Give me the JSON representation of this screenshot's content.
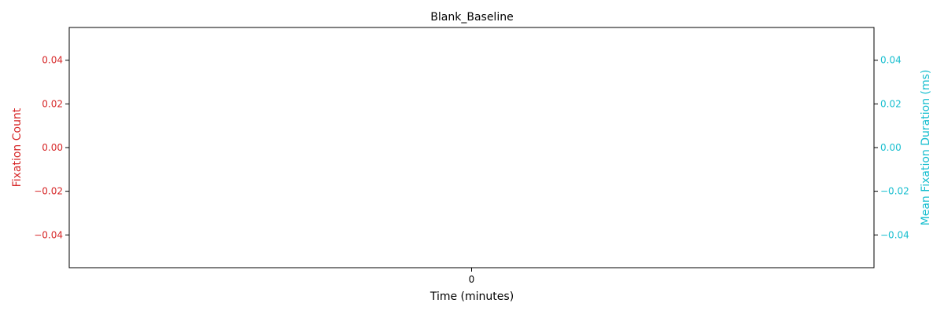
{
  "chart_data": {
    "type": "line",
    "title": "Blank_Baseline",
    "xlabel": "Time (minutes)",
    "x_ticks": [
      "0"
    ],
    "left_axis": {
      "label": "Fixation Count",
      "color": "#d62728",
      "ylim": [
        -0.055,
        0.055
      ],
      "ticks": [
        0.04,
        0.02,
        0.0,
        -0.02,
        -0.04
      ],
      "tick_labels": [
        "0.04",
        "0.02",
        "0.00",
        "−0.02",
        "−0.04"
      ]
    },
    "right_axis": {
      "label": "Mean Fixation Duration (ms)",
      "color": "#17becf",
      "ylim": [
        -0.055,
        0.055
      ],
      "ticks": [
        0.04,
        0.02,
        0.0,
        -0.02,
        -0.04
      ],
      "tick_labels": [
        "0.04",
        "0.02",
        "0.00",
        "−0.02",
        "−0.04"
      ]
    },
    "series": [],
    "grid": false,
    "legend": "none"
  }
}
